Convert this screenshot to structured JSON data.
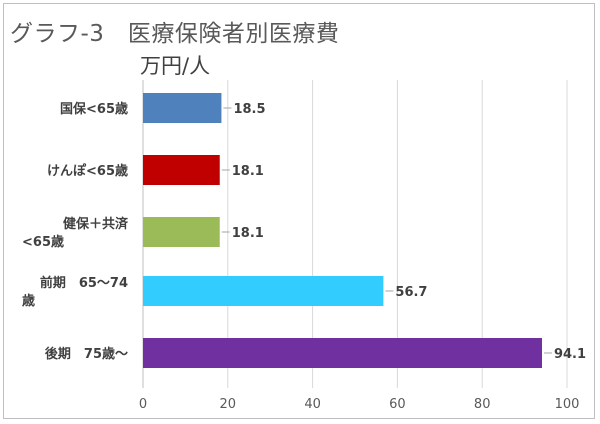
{
  "title": "グラフ-3　医療保険者別医療費",
  "unit_label": "万円/人",
  "chart_data": {
    "type": "bar",
    "orientation": "horizontal",
    "title": "グラフ-3　医療保険者別医療費",
    "xlabel": "",
    "ylabel": "",
    "unit": "万円/人",
    "xlim": [
      0,
      100
    ],
    "x_ticks": [
      "0",
      "20",
      "40",
      "60",
      "80",
      "100"
    ],
    "grid": true,
    "legend": "none",
    "categories": [
      [
        "国保<65歳"
      ],
      [
        "けんぽ<65歳"
      ],
      [
        "健保＋共済",
        "<65歳"
      ],
      [
        "前期　65～74",
        "歳"
      ],
      [
        "後期　75歳～"
      ]
    ],
    "values": [
      18.5,
      18.1,
      18.1,
      56.7,
      94.1
    ],
    "data_labels": [
      "18.5",
      "18.1",
      "18.1",
      "56.7",
      "94.1"
    ],
    "colors": [
      "#4f81bd",
      "#c00000",
      "#9bbb59",
      "#33ccff",
      "#7030a0"
    ]
  }
}
